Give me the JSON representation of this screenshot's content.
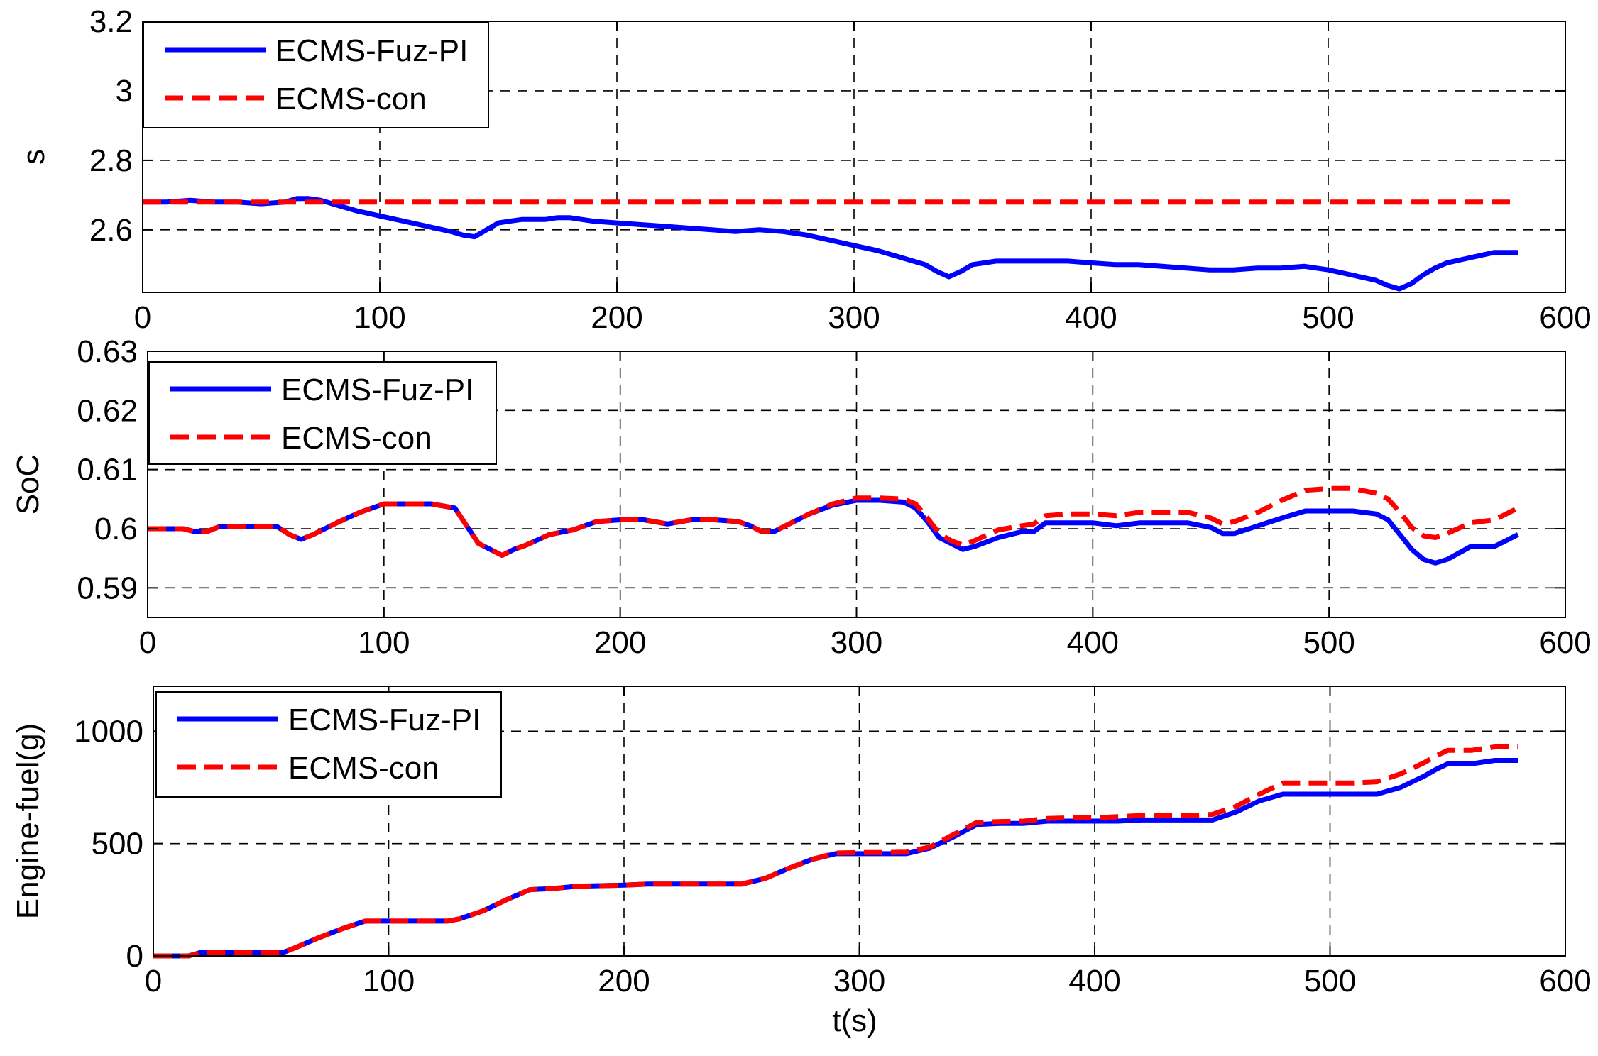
{
  "colors": {
    "ecms_fuz_pi": "#0000ff",
    "ecms_con": "#ff0000",
    "grid": "#000000",
    "axes": "#000000"
  },
  "figure": {
    "xlabel": "t(s)"
  },
  "chart_data": [
    {
      "type": "line",
      "ylabel": "s",
      "xlim": [
        0,
        600
      ],
      "ylim": [
        2.42,
        3.2
      ],
      "xticks": [
        0,
        100,
        200,
        300,
        400,
        500,
        600
      ],
      "xtick_labels": [
        "0",
        "100",
        "200",
        "300",
        "400",
        "500",
        "600"
      ],
      "yticks": [
        2.6,
        2.8,
        3.0,
        3.2
      ],
      "ytick_labels": [
        "2.6",
        "2.8",
        "3",
        "3.2"
      ],
      "grid": true,
      "legend_position": "top-left",
      "series": [
        {
          "name": "ECMS-Fuz-PI",
          "style": "solid",
          "x": [
            0,
            10,
            20,
            30,
            40,
            50,
            60,
            65,
            70,
            75,
            80,
            90,
            100,
            110,
            120,
            130,
            135,
            140,
            145,
            150,
            155,
            160,
            170,
            175,
            180,
            190,
            200,
            210,
            220,
            230,
            240,
            250,
            260,
            270,
            280,
            290,
            300,
            310,
            320,
            330,
            335,
            340,
            345,
            350,
            360,
            370,
            380,
            390,
            400,
            410,
            420,
            430,
            440,
            450,
            460,
            470,
            480,
            490,
            500,
            510,
            520,
            525,
            530,
            535,
            540,
            545,
            550,
            560,
            570,
            580
          ],
          "y": [
            2.68,
            2.68,
            2.685,
            2.68,
            2.68,
            2.675,
            2.68,
            2.69,
            2.69,
            2.685,
            2.675,
            2.655,
            2.64,
            2.625,
            2.61,
            2.595,
            2.585,
            2.58,
            2.6,
            2.62,
            2.625,
            2.63,
            2.63,
            2.635,
            2.635,
            2.625,
            2.62,
            2.615,
            2.61,
            2.605,
            2.6,
            2.595,
            2.6,
            2.595,
            2.585,
            2.57,
            2.555,
            2.54,
            2.52,
            2.5,
            2.48,
            2.465,
            2.48,
            2.5,
            2.51,
            2.51,
            2.51,
            2.51,
            2.505,
            2.5,
            2.5,
            2.495,
            2.49,
            2.485,
            2.485,
            2.49,
            2.49,
            2.495,
            2.485,
            2.47,
            2.455,
            2.44,
            2.43,
            2.445,
            2.47,
            2.49,
            2.505,
            2.52,
            2.535,
            2.535
          ]
        },
        {
          "name": "ECMS-con",
          "style": "dashed",
          "x": [
            0,
            580
          ],
          "y": [
            2.68,
            2.68
          ]
        }
      ]
    },
    {
      "type": "line",
      "ylabel": "SoC",
      "xlim": [
        0,
        600
      ],
      "ylim": [
        0.585,
        0.63
      ],
      "xticks": [
        0,
        100,
        200,
        300,
        400,
        500,
        600
      ],
      "xtick_labels": [
        "0",
        "100",
        "200",
        "300",
        "400",
        "500",
        "600"
      ],
      "yticks": [
        0.59,
        0.6,
        0.61,
        0.62,
        0.63
      ],
      "ytick_labels": [
        "0.59",
        "0.6",
        "0.61",
        "0.62",
        "0.63"
      ],
      "grid": true,
      "legend_position": "top-left",
      "series": [
        {
          "name": "ECMS-Fuz-PI",
          "style": "solid",
          "x": [
            0,
            15,
            20,
            25,
            30,
            55,
            60,
            65,
            70,
            80,
            90,
            100,
            110,
            120,
            130,
            135,
            140,
            150,
            155,
            160,
            170,
            180,
            190,
            200,
            210,
            220,
            230,
            240,
            250,
            255,
            260,
            265,
            270,
            280,
            290,
            300,
            310,
            320,
            325,
            330,
            335,
            340,
            345,
            350,
            360,
            370,
            375,
            380,
            390,
            400,
            410,
            420,
            430,
            440,
            450,
            455,
            460,
            470,
            480,
            490,
            500,
            510,
            520,
            525,
            530,
            535,
            540,
            545,
            550,
            560,
            570,
            580
          ],
          "y": [
            0.6,
            0.6,
            0.5995,
            0.5995,
            0.6003,
            0.6003,
            0.599,
            0.5982,
            0.599,
            0.601,
            0.6028,
            0.6042,
            0.6042,
            0.6042,
            0.6035,
            0.6005,
            0.5975,
            0.5955,
            0.5965,
            0.5972,
            0.599,
            0.5998,
            0.6012,
            0.6015,
            0.6015,
            0.6008,
            0.6015,
            0.6015,
            0.6012,
            0.6005,
            0.5995,
            0.5995,
            0.6005,
            0.6025,
            0.604,
            0.6048,
            0.6048,
            0.6045,
            0.6035,
            0.6012,
            0.5985,
            0.5975,
            0.5965,
            0.597,
            0.5985,
            0.5995,
            0.5995,
            0.601,
            0.601,
            0.601,
            0.6005,
            0.601,
            0.601,
            0.601,
            0.6002,
            0.5992,
            0.5992,
            0.6005,
            0.6018,
            0.603,
            0.603,
            0.603,
            0.6025,
            0.6015,
            0.599,
            0.5965,
            0.5948,
            0.5942,
            0.5948,
            0.597,
            0.597,
            0.599
          ]
        },
        {
          "name": "ECMS-con",
          "style": "dashed",
          "x": [
            0,
            15,
            20,
            25,
            30,
            55,
            60,
            65,
            70,
            80,
            90,
            100,
            110,
            120,
            130,
            135,
            140,
            150,
            155,
            160,
            170,
            180,
            190,
            200,
            210,
            220,
            230,
            240,
            250,
            255,
            260,
            265,
            270,
            280,
            290,
            300,
            310,
            320,
            325,
            330,
            335,
            340,
            345,
            350,
            360,
            370,
            375,
            380,
            390,
            400,
            410,
            420,
            430,
            440,
            450,
            455,
            460,
            470,
            480,
            490,
            500,
            510,
            520,
            525,
            530,
            535,
            540,
            545,
            550,
            560,
            570,
            580
          ],
          "y": [
            0.6,
            0.6,
            0.5995,
            0.5995,
            0.6003,
            0.6003,
            0.599,
            0.5982,
            0.599,
            0.601,
            0.6028,
            0.6042,
            0.6042,
            0.6042,
            0.6035,
            0.6005,
            0.5975,
            0.5955,
            0.5965,
            0.5972,
            0.599,
            0.5998,
            0.6012,
            0.6015,
            0.6015,
            0.6008,
            0.6015,
            0.6015,
            0.6012,
            0.6005,
            0.5995,
            0.5995,
            0.6005,
            0.6025,
            0.6042,
            0.6052,
            0.6052,
            0.605,
            0.6042,
            0.6018,
            0.5992,
            0.598,
            0.5972,
            0.598,
            0.5998,
            0.6005,
            0.6008,
            0.6022,
            0.6025,
            0.6025,
            0.6022,
            0.6028,
            0.6028,
            0.6028,
            0.6018,
            0.6008,
            0.6012,
            0.6028,
            0.6048,
            0.6065,
            0.6068,
            0.6068,
            0.606,
            0.605,
            0.6028,
            0.6002,
            0.5988,
            0.5985,
            0.5992,
            0.601,
            0.6015,
            0.6035
          ]
        }
      ]
    },
    {
      "type": "line",
      "ylabel": "Engine-fuel(g)",
      "xlim": [
        0,
        600
      ],
      "ylim": [
        0,
        1200
      ],
      "xticks": [
        0,
        100,
        200,
        300,
        400,
        500,
        600
      ],
      "xtick_labels": [
        "0",
        "100",
        "200",
        "300",
        "400",
        "500",
        "600"
      ],
      "yticks": [
        0,
        500,
        1000
      ],
      "ytick_labels": [
        "0",
        "500",
        "1000"
      ],
      "grid": true,
      "legend_position": "top-left",
      "series": [
        {
          "name": "ECMS-Fuz-PI",
          "style": "solid",
          "x": [
            0,
            15,
            20,
            50,
            55,
            60,
            70,
            80,
            90,
            100,
            120,
            125,
            130,
            140,
            150,
            160,
            170,
            180,
            200,
            210,
            240,
            250,
            260,
            270,
            280,
            290,
            300,
            310,
            320,
            330,
            340,
            350,
            360,
            370,
            380,
            390,
            400,
            410,
            420,
            430,
            440,
            450,
            460,
            470,
            480,
            490,
            500,
            510,
            520,
            530,
            540,
            545,
            550,
            560,
            570,
            580
          ],
          "y": [
            0,
            0,
            15,
            15,
            15,
            35,
            80,
            120,
            155,
            155,
            155,
            155,
            165,
            200,
            250,
            295,
            300,
            310,
            315,
            320,
            320,
            320,
            345,
            390,
            430,
            455,
            455,
            455,
            455,
            480,
            530,
            585,
            590,
            590,
            600,
            600,
            600,
            600,
            605,
            605,
            605,
            605,
            640,
            690,
            720,
            720,
            720,
            720,
            720,
            750,
            800,
            830,
            855,
            855,
            870,
            870
          ]
        },
        {
          "name": "ECMS-con",
          "style": "dashed",
          "x": [
            0,
            15,
            20,
            50,
            55,
            60,
            70,
            80,
            90,
            100,
            120,
            125,
            130,
            140,
            150,
            160,
            170,
            180,
            200,
            210,
            240,
            250,
            260,
            270,
            280,
            290,
            300,
            310,
            320,
            330,
            340,
            350,
            360,
            370,
            380,
            390,
            400,
            410,
            420,
            430,
            440,
            450,
            460,
            470,
            480,
            490,
            500,
            510,
            520,
            530,
            540,
            545,
            550,
            560,
            570,
            580
          ],
          "y": [
            0,
            0,
            15,
            15,
            15,
            35,
            80,
            120,
            155,
            155,
            155,
            155,
            165,
            200,
            250,
            295,
            300,
            310,
            315,
            320,
            320,
            320,
            345,
            390,
            430,
            458,
            460,
            460,
            462,
            485,
            540,
            595,
            598,
            600,
            612,
            615,
            615,
            620,
            625,
            625,
            625,
            630,
            665,
            720,
            770,
            770,
            770,
            770,
            775,
            810,
            860,
            890,
            915,
            915,
            930,
            930
          ]
        }
      ]
    }
  ]
}
